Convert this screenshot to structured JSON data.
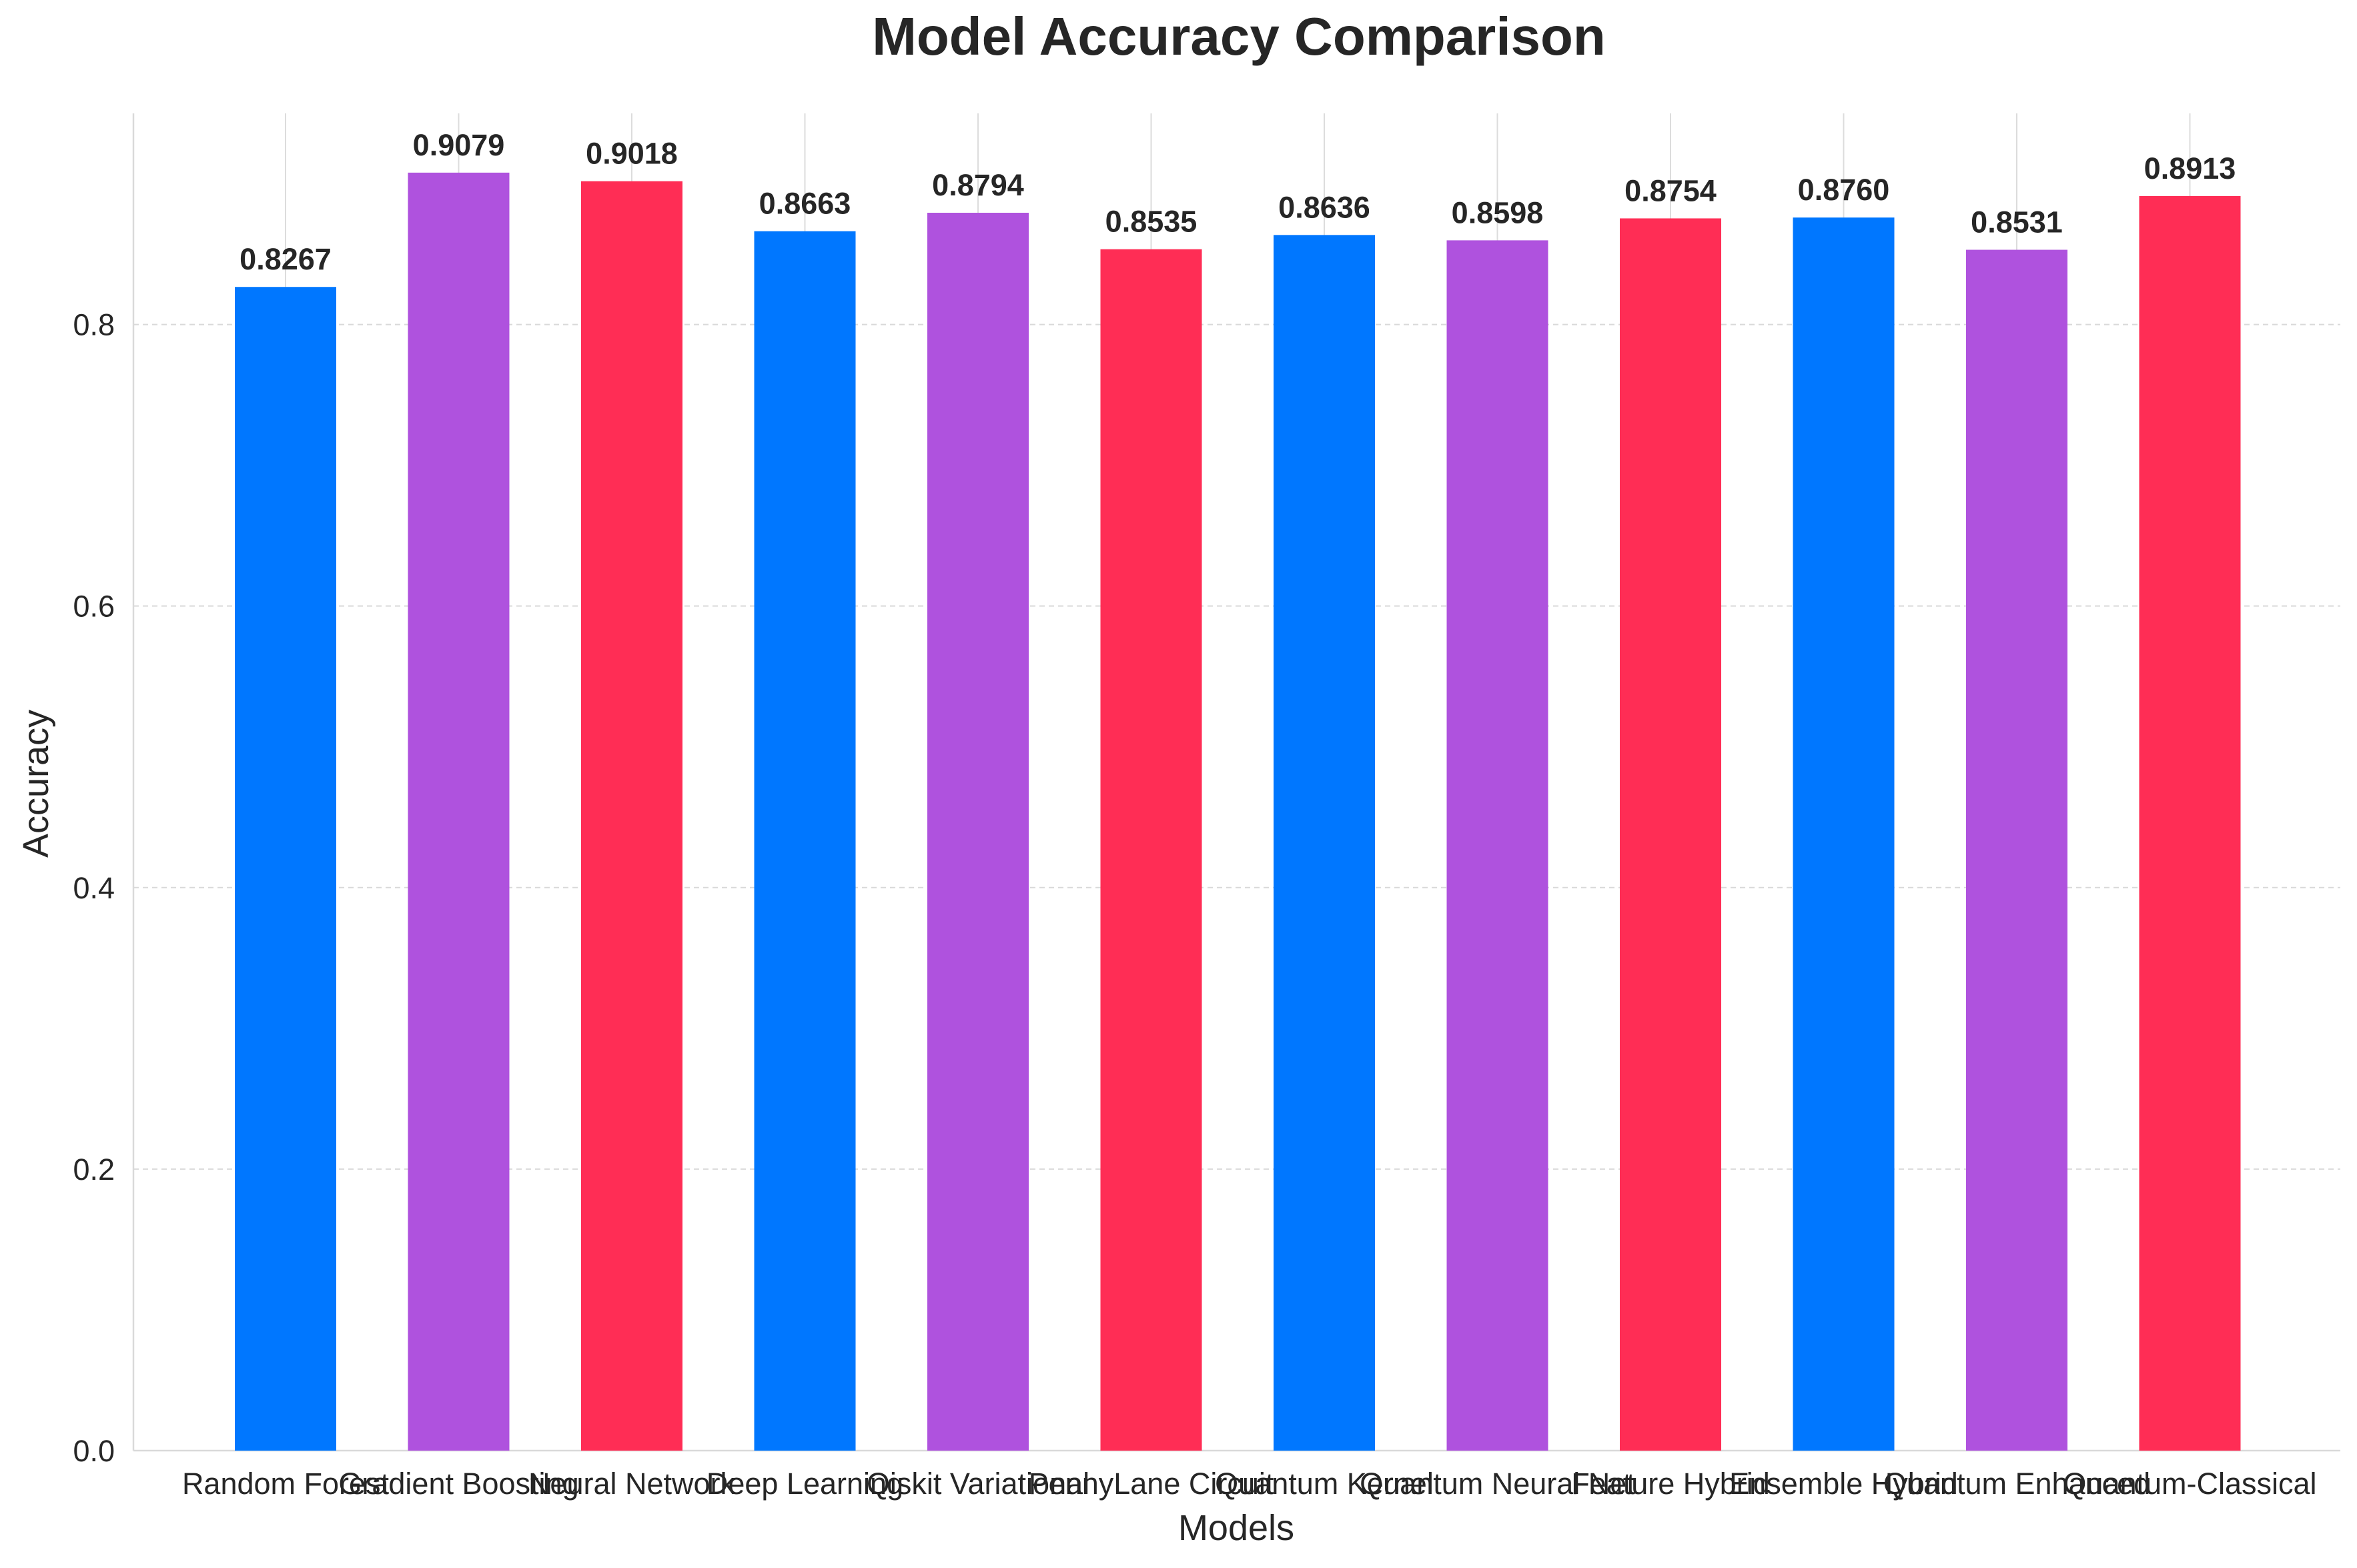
{
  "chart_data": {
    "type": "bar",
    "title": "Model Accuracy Comparison",
    "xlabel": "Models",
    "ylabel": "Accuracy",
    "ylim": [
      0,
      0.95
    ],
    "yticks": [
      "0.0",
      "0.2",
      "0.4",
      "0.6",
      "0.8"
    ],
    "grid": true,
    "categories": [
      "Random Forest",
      "Gradient Boosting",
      "Neural Network",
      "Deep Learning",
      "Qiskit Variational",
      "PennyLane Circuit",
      "Quantum Kernel",
      "Quantum Neural Net",
      "Feature Hybrid",
      "Ensemble Hybrid",
      "Quantum Enhanced",
      "Quantum-Classical"
    ],
    "values": [
      0.8267,
      0.9079,
      0.9018,
      0.8663,
      0.8794,
      0.8535,
      0.8636,
      0.8598,
      0.8754,
      0.876,
      0.8531,
      0.8913
    ],
    "value_labels": [
      "0.8267",
      "0.9079",
      "0.9018",
      "0.8663",
      "0.8794",
      "0.8535",
      "0.8636",
      "0.8598",
      "0.8754",
      "0.8760",
      "0.8531",
      "0.8913"
    ],
    "colors": [
      "#0077ff",
      "#af52de",
      "#ff2d55",
      "#0077ff",
      "#af52de",
      "#ff2d55",
      "#0077ff",
      "#af52de",
      "#ff2d55",
      "#0077ff",
      "#af52de",
      "#ff2d55"
    ]
  }
}
